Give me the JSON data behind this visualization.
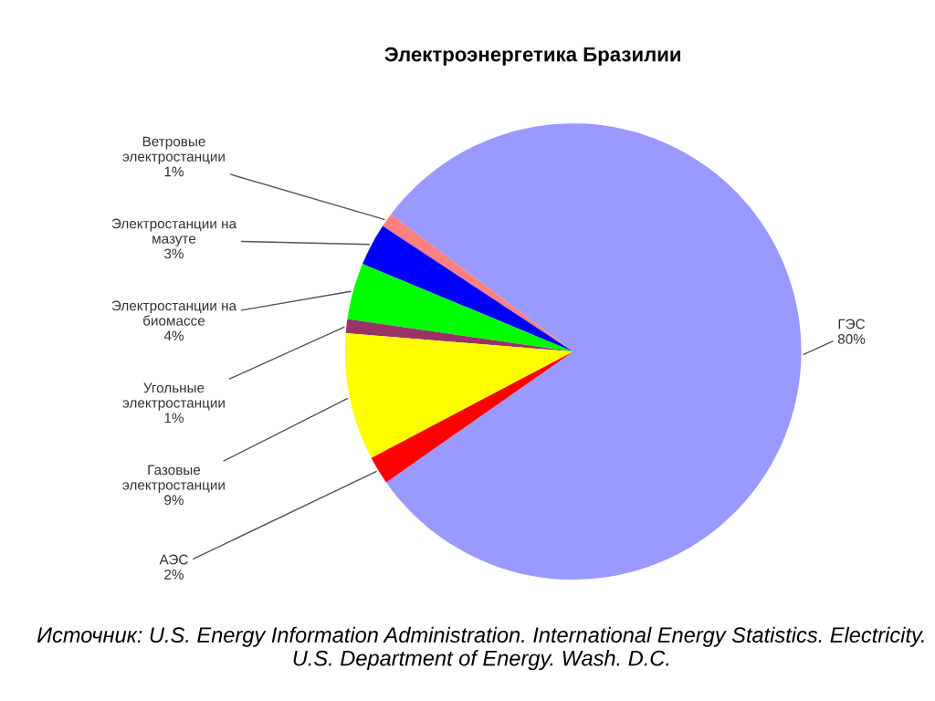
{
  "chart_data": {
    "type": "pie",
    "title": "Электроэнергетика Бразилии",
    "categories": [
      "ГЭС",
      "Ветровые\nэлектростанции",
      "Электростанции на\nмазуте",
      "Электростанции на\nбиомассе",
      "Угольные\nэлектростанции",
      "Газовые\nэлектростанции",
      "АЭС"
    ],
    "values": [
      80,
      1,
      3,
      4,
      1,
      9,
      2
    ],
    "value_labels": [
      "80%",
      "1%",
      "3%",
      "4%",
      "1%",
      "9%",
      "2%"
    ],
    "colors": [
      "#9999ff",
      "#ff8080",
      "#0000ff",
      "#00ff00",
      "#993366",
      "#ffff00",
      "#ff0000"
    ],
    "legend": false,
    "annotations": [
      "Источник: U.S. Energy Information Administration. International Energy Statistics. Electricity. U.S. Department of Energy. Wash. D.C."
    ]
  }
}
